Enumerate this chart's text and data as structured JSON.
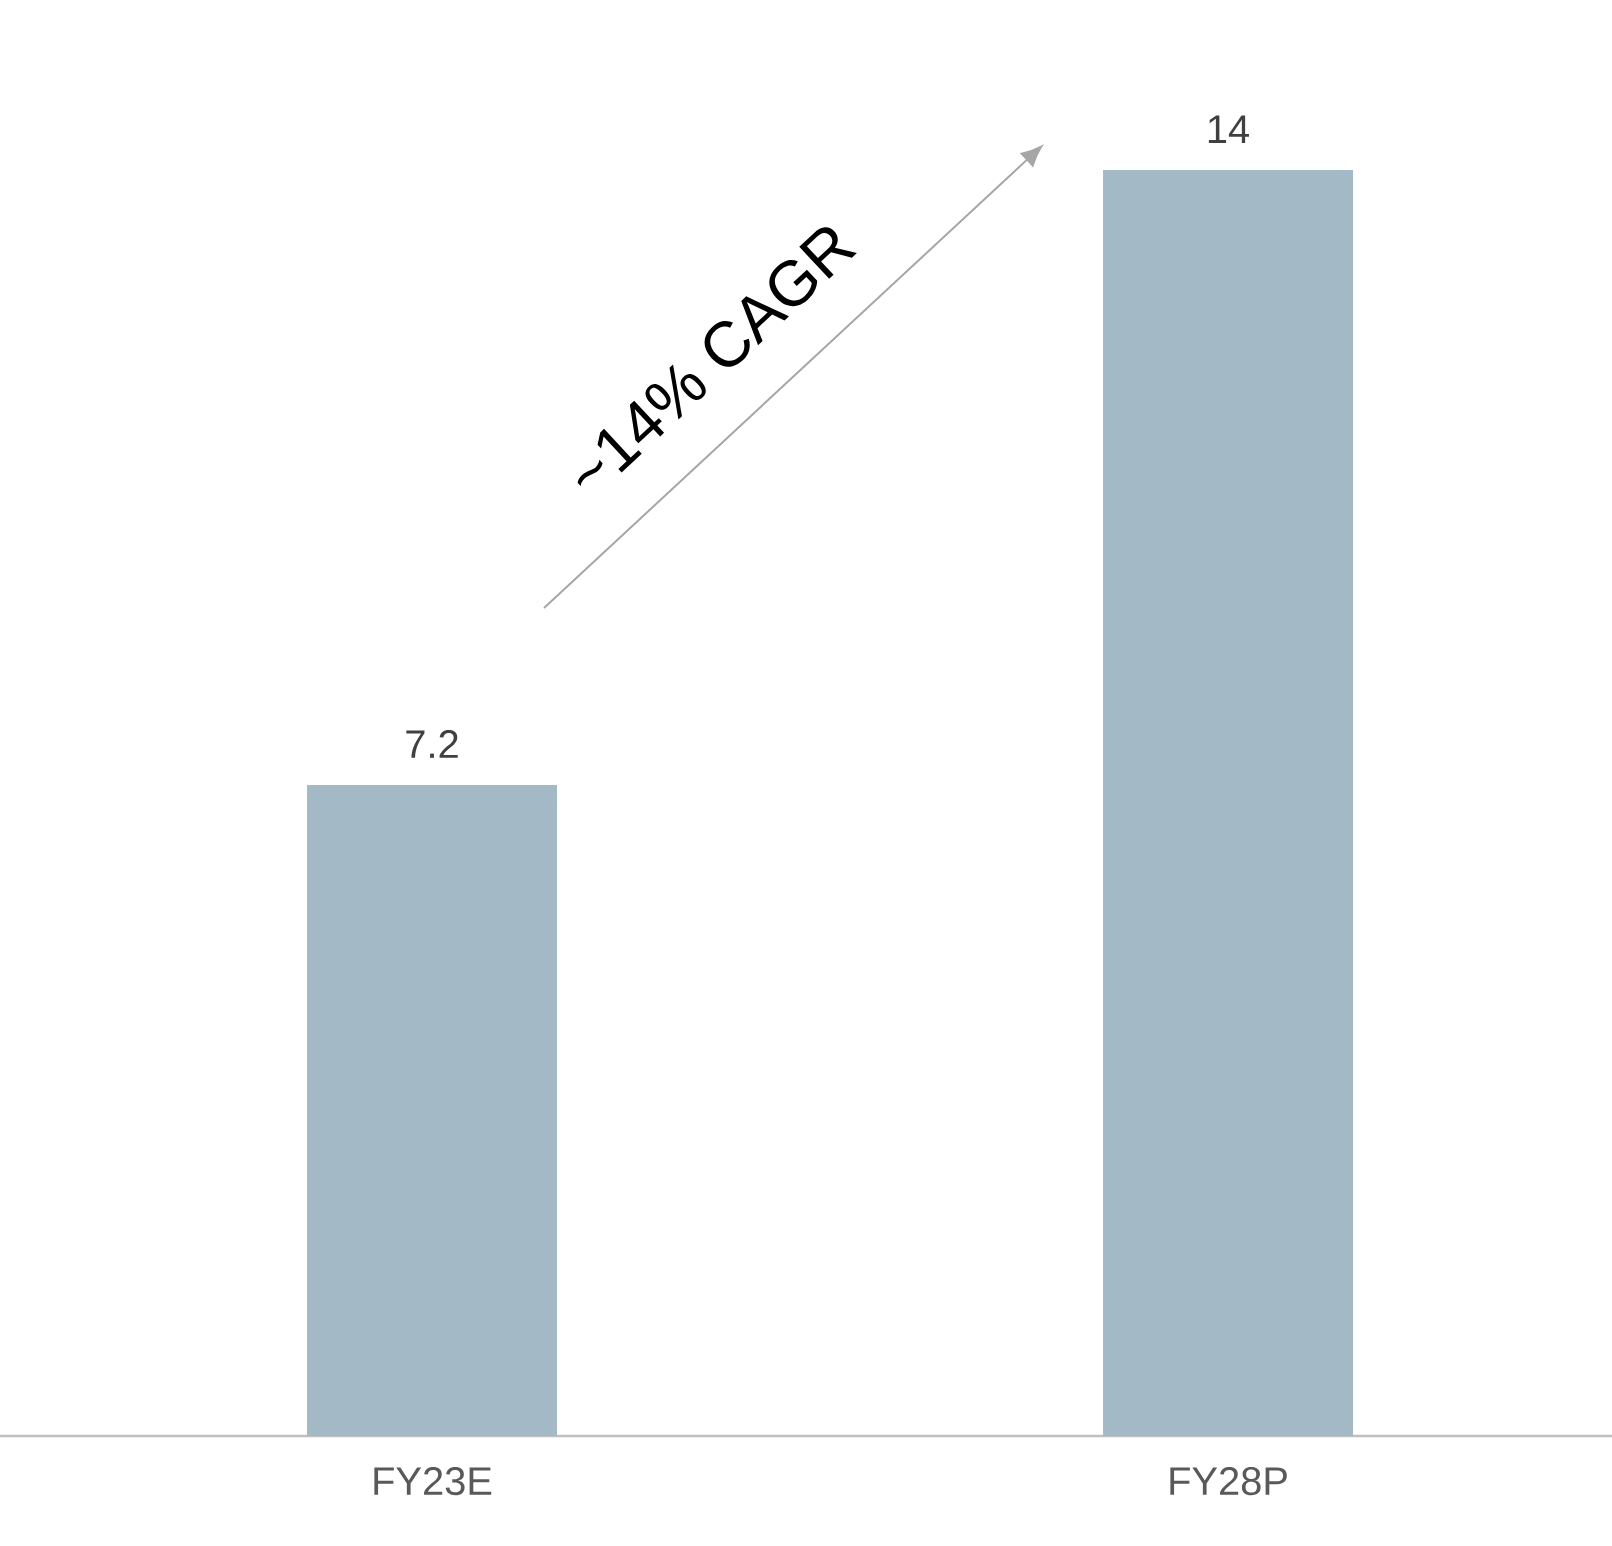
{
  "chart_data": {
    "type": "bar",
    "categories": [
      "FY23E",
      "FY28P"
    ],
    "values": [
      7.2,
      14
    ],
    "color": "#a3b9c6",
    "data_labels": true,
    "annotations": [
      "~14% CAGR"
    ]
  }
}
